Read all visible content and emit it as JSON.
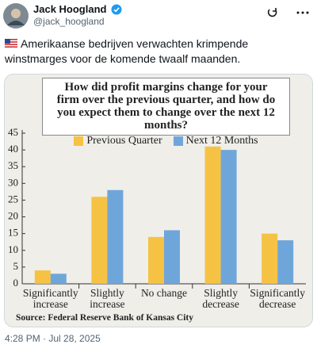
{
  "tweet": {
    "name": "Jack Hoogland",
    "handle": "@jack_hoogland",
    "text": "Amerikaanse bedrijven verwachten krimpende winstmarges voor de komende twaalf maanden.",
    "timestamp": "4:28 PM · Jul 28, 2025"
  },
  "chart_data": {
    "type": "bar",
    "title": "How did profit margins change for your firm over the previous quarter, and how do you expect them to change over the next 12 months?",
    "source": "Source: Federal Reserve Bank of Kansas City",
    "categories": [
      "Significantly increase",
      "Slightly increase",
      "No change",
      "Slightly decrease",
      "Significantly decrease"
    ],
    "series": [
      {
        "name": "Previous Quarter",
        "color": "#f6c244",
        "values": [
          4,
          26,
          14,
          41,
          15
        ]
      },
      {
        "name": "Next 12 Months",
        "color": "#6fa6da",
        "values": [
          3,
          28,
          16,
          40,
          13
        ]
      }
    ],
    "ylim": [
      0,
      45
    ],
    "yticks": [
      0,
      5,
      10,
      15,
      20,
      25,
      30,
      35,
      40,
      45
    ]
  }
}
